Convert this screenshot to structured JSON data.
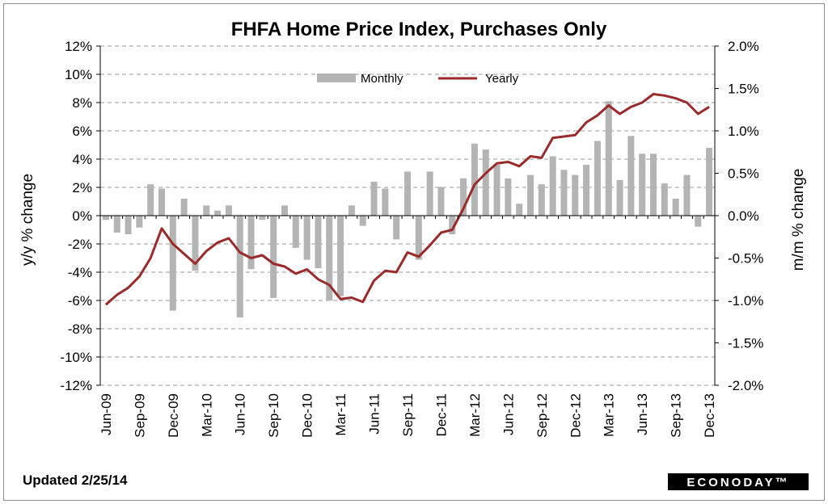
{
  "chart_data": {
    "type": "bar+line",
    "title": "FHFA Home Price Index, Purchases Only",
    "ylabel_left": "y/y  % change",
    "ylabel_right": "m/m % change",
    "ylim_left": [
      -12,
      12
    ],
    "ylim_right": [
      -2.0,
      2.0
    ],
    "yticks_left": [
      "12%",
      "10%",
      "8%",
      "6%",
      "4%",
      "2%",
      "0%",
      "-2%",
      "-4%",
      "-6%",
      "-8%",
      "-10%",
      "-12%"
    ],
    "yticks_right": [
      "2.0%",
      "1.5%",
      "1.0%",
      "0.5%",
      "0.0%",
      "-0.5%",
      "-1.0%",
      "-1.5%",
      "-2.0%"
    ],
    "grid": "horizontal dashed",
    "legend_position": "top-center",
    "x_tick_labels": [
      "Jun-09",
      "Sep-09",
      "Dec-09",
      "Mar-10",
      "Jun-10",
      "Sep-10",
      "Dec-10",
      "Mar-11",
      "Jun-11",
      "Sep-11",
      "Dec-11",
      "Mar-12",
      "Jun-12",
      "Sep-12",
      "Dec-12",
      "Mar-13",
      "Jun-13",
      "Sep-13",
      "Dec-13"
    ],
    "months": [
      "Jun-09",
      "Jul-09",
      "Aug-09",
      "Sep-09",
      "Oct-09",
      "Nov-09",
      "Dec-09",
      "Jan-10",
      "Feb-10",
      "Mar-10",
      "Apr-10",
      "May-10",
      "Jun-10",
      "Jul-10",
      "Aug-10",
      "Sep-10",
      "Oct-10",
      "Nov-10",
      "Dec-10",
      "Jan-11",
      "Feb-11",
      "Mar-11",
      "Apr-11",
      "May-11",
      "Jun-11",
      "Jul-11",
      "Aug-11",
      "Sep-11",
      "Oct-11",
      "Nov-11",
      "Dec-11",
      "Jan-12",
      "Feb-12",
      "Mar-12",
      "Apr-12",
      "May-12",
      "Jun-12",
      "Jul-12",
      "Aug-12",
      "Sep-12",
      "Oct-12",
      "Nov-12",
      "Dec-12",
      "Jan-13",
      "Feb-13",
      "Mar-13",
      "Apr-13",
      "May-13",
      "Jun-13",
      "Jul-13",
      "Aug-13",
      "Sep-13",
      "Oct-13",
      "Nov-13",
      "Dec-13"
    ],
    "series": [
      {
        "name": "Monthly",
        "axis": "right",
        "kind": "bar",
        "color": "#b4b4b4",
        "values": [
          -0.05,
          -0.2,
          -0.22,
          -0.14,
          0.37,
          0.32,
          -1.12,
          0.2,
          -0.65,
          0.12,
          0.06,
          0.12,
          -1.2,
          -0.63,
          -0.05,
          -0.97,
          0.12,
          -0.38,
          -0.52,
          -0.62,
          -1.0,
          -0.95,
          0.12,
          -0.12,
          0.4,
          0.32,
          -0.28,
          0.52,
          -0.52,
          0.52,
          0.34,
          -0.22,
          0.44,
          0.85,
          0.78,
          0.6,
          0.44,
          0.14,
          0.48,
          0.37,
          0.7,
          0.54,
          0.48,
          0.6,
          0.88,
          1.35,
          0.42,
          0.94,
          0.73,
          0.73,
          0.38,
          0.2,
          0.48,
          -0.13,
          0.8
        ]
      },
      {
        "name": "Yearly",
        "axis": "left",
        "kind": "line",
        "color": "#9b2a2a",
        "values": [
          -6.3,
          -5.6,
          -5.1,
          -4.3,
          -3.0,
          -0.9,
          -2.0,
          -2.7,
          -3.4,
          -2.5,
          -1.9,
          -1.6,
          -2.6,
          -3.0,
          -2.8,
          -3.4,
          -3.6,
          -4.1,
          -3.8,
          -4.5,
          -4.9,
          -5.9,
          -5.8,
          -6.1,
          -4.6,
          -3.9,
          -4.0,
          -2.6,
          -2.9,
          -2.1,
          -1.2,
          -1.0,
          0.5,
          2.2,
          3.0,
          3.7,
          3.8,
          3.5,
          4.2,
          4.1,
          5.5,
          5.6,
          5.7,
          6.6,
          7.1,
          7.8,
          7.2,
          7.7,
          8.0,
          8.6,
          8.5,
          8.3,
          8.0,
          7.2,
          7.7
        ]
      }
    ]
  },
  "footer": {
    "updated": "Updated 2/25/14",
    "brand": "ECONODAY™"
  }
}
